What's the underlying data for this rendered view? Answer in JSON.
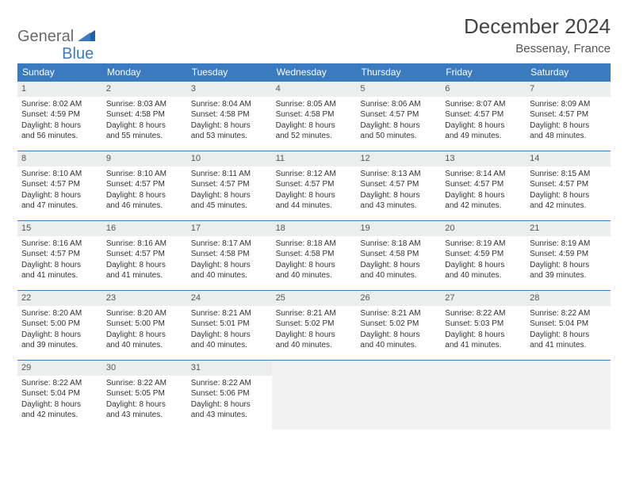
{
  "logo": {
    "part1": "General",
    "part2": "Blue"
  },
  "title": "December 2024",
  "location": "Bessenay, France",
  "colors": {
    "header_bg": "#3a7bbf",
    "header_text": "#ffffff",
    "daynum_bg": "#eceded",
    "border": "#3a7bbf",
    "empty_bg": "#f2f2f2",
    "text": "#333333"
  },
  "day_names": [
    "Sunday",
    "Monday",
    "Tuesday",
    "Wednesday",
    "Thursday",
    "Friday",
    "Saturday"
  ],
  "weeks": [
    [
      {
        "n": "1",
        "sunrise": "Sunrise: 8:02 AM",
        "sunset": "Sunset: 4:59 PM",
        "day1": "Daylight: 8 hours",
        "day2": "and 56 minutes."
      },
      {
        "n": "2",
        "sunrise": "Sunrise: 8:03 AM",
        "sunset": "Sunset: 4:58 PM",
        "day1": "Daylight: 8 hours",
        "day2": "and 55 minutes."
      },
      {
        "n": "3",
        "sunrise": "Sunrise: 8:04 AM",
        "sunset": "Sunset: 4:58 PM",
        "day1": "Daylight: 8 hours",
        "day2": "and 53 minutes."
      },
      {
        "n": "4",
        "sunrise": "Sunrise: 8:05 AM",
        "sunset": "Sunset: 4:58 PM",
        "day1": "Daylight: 8 hours",
        "day2": "and 52 minutes."
      },
      {
        "n": "5",
        "sunrise": "Sunrise: 8:06 AM",
        "sunset": "Sunset: 4:57 PM",
        "day1": "Daylight: 8 hours",
        "day2": "and 50 minutes."
      },
      {
        "n": "6",
        "sunrise": "Sunrise: 8:07 AM",
        "sunset": "Sunset: 4:57 PM",
        "day1": "Daylight: 8 hours",
        "day2": "and 49 minutes."
      },
      {
        "n": "7",
        "sunrise": "Sunrise: 8:09 AM",
        "sunset": "Sunset: 4:57 PM",
        "day1": "Daylight: 8 hours",
        "day2": "and 48 minutes."
      }
    ],
    [
      {
        "n": "8",
        "sunrise": "Sunrise: 8:10 AM",
        "sunset": "Sunset: 4:57 PM",
        "day1": "Daylight: 8 hours",
        "day2": "and 47 minutes."
      },
      {
        "n": "9",
        "sunrise": "Sunrise: 8:10 AM",
        "sunset": "Sunset: 4:57 PM",
        "day1": "Daylight: 8 hours",
        "day2": "and 46 minutes."
      },
      {
        "n": "10",
        "sunrise": "Sunrise: 8:11 AM",
        "sunset": "Sunset: 4:57 PM",
        "day1": "Daylight: 8 hours",
        "day2": "and 45 minutes."
      },
      {
        "n": "11",
        "sunrise": "Sunrise: 8:12 AM",
        "sunset": "Sunset: 4:57 PM",
        "day1": "Daylight: 8 hours",
        "day2": "and 44 minutes."
      },
      {
        "n": "12",
        "sunrise": "Sunrise: 8:13 AM",
        "sunset": "Sunset: 4:57 PM",
        "day1": "Daylight: 8 hours",
        "day2": "and 43 minutes."
      },
      {
        "n": "13",
        "sunrise": "Sunrise: 8:14 AM",
        "sunset": "Sunset: 4:57 PM",
        "day1": "Daylight: 8 hours",
        "day2": "and 42 minutes."
      },
      {
        "n": "14",
        "sunrise": "Sunrise: 8:15 AM",
        "sunset": "Sunset: 4:57 PM",
        "day1": "Daylight: 8 hours",
        "day2": "and 42 minutes."
      }
    ],
    [
      {
        "n": "15",
        "sunrise": "Sunrise: 8:16 AM",
        "sunset": "Sunset: 4:57 PM",
        "day1": "Daylight: 8 hours",
        "day2": "and 41 minutes."
      },
      {
        "n": "16",
        "sunrise": "Sunrise: 8:16 AM",
        "sunset": "Sunset: 4:57 PM",
        "day1": "Daylight: 8 hours",
        "day2": "and 41 minutes."
      },
      {
        "n": "17",
        "sunrise": "Sunrise: 8:17 AM",
        "sunset": "Sunset: 4:58 PM",
        "day1": "Daylight: 8 hours",
        "day2": "and 40 minutes."
      },
      {
        "n": "18",
        "sunrise": "Sunrise: 8:18 AM",
        "sunset": "Sunset: 4:58 PM",
        "day1": "Daylight: 8 hours",
        "day2": "and 40 minutes."
      },
      {
        "n": "19",
        "sunrise": "Sunrise: 8:18 AM",
        "sunset": "Sunset: 4:58 PM",
        "day1": "Daylight: 8 hours",
        "day2": "and 40 minutes."
      },
      {
        "n": "20",
        "sunrise": "Sunrise: 8:19 AM",
        "sunset": "Sunset: 4:59 PM",
        "day1": "Daylight: 8 hours",
        "day2": "and 40 minutes."
      },
      {
        "n": "21",
        "sunrise": "Sunrise: 8:19 AM",
        "sunset": "Sunset: 4:59 PM",
        "day1": "Daylight: 8 hours",
        "day2": "and 39 minutes."
      }
    ],
    [
      {
        "n": "22",
        "sunrise": "Sunrise: 8:20 AM",
        "sunset": "Sunset: 5:00 PM",
        "day1": "Daylight: 8 hours",
        "day2": "and 39 minutes."
      },
      {
        "n": "23",
        "sunrise": "Sunrise: 8:20 AM",
        "sunset": "Sunset: 5:00 PM",
        "day1": "Daylight: 8 hours",
        "day2": "and 40 minutes."
      },
      {
        "n": "24",
        "sunrise": "Sunrise: 8:21 AM",
        "sunset": "Sunset: 5:01 PM",
        "day1": "Daylight: 8 hours",
        "day2": "and 40 minutes."
      },
      {
        "n": "25",
        "sunrise": "Sunrise: 8:21 AM",
        "sunset": "Sunset: 5:02 PM",
        "day1": "Daylight: 8 hours",
        "day2": "and 40 minutes."
      },
      {
        "n": "26",
        "sunrise": "Sunrise: 8:21 AM",
        "sunset": "Sunset: 5:02 PM",
        "day1": "Daylight: 8 hours",
        "day2": "and 40 minutes."
      },
      {
        "n": "27",
        "sunrise": "Sunrise: 8:22 AM",
        "sunset": "Sunset: 5:03 PM",
        "day1": "Daylight: 8 hours",
        "day2": "and 41 minutes."
      },
      {
        "n": "28",
        "sunrise": "Sunrise: 8:22 AM",
        "sunset": "Sunset: 5:04 PM",
        "day1": "Daylight: 8 hours",
        "day2": "and 41 minutes."
      }
    ],
    [
      {
        "n": "29",
        "sunrise": "Sunrise: 8:22 AM",
        "sunset": "Sunset: 5:04 PM",
        "day1": "Daylight: 8 hours",
        "day2": "and 42 minutes."
      },
      {
        "n": "30",
        "sunrise": "Sunrise: 8:22 AM",
        "sunset": "Sunset: 5:05 PM",
        "day1": "Daylight: 8 hours",
        "day2": "and 43 minutes."
      },
      {
        "n": "31",
        "sunrise": "Sunrise: 8:22 AM",
        "sunset": "Sunset: 5:06 PM",
        "day1": "Daylight: 8 hours",
        "day2": "and 43 minutes."
      },
      null,
      null,
      null,
      null
    ]
  ]
}
